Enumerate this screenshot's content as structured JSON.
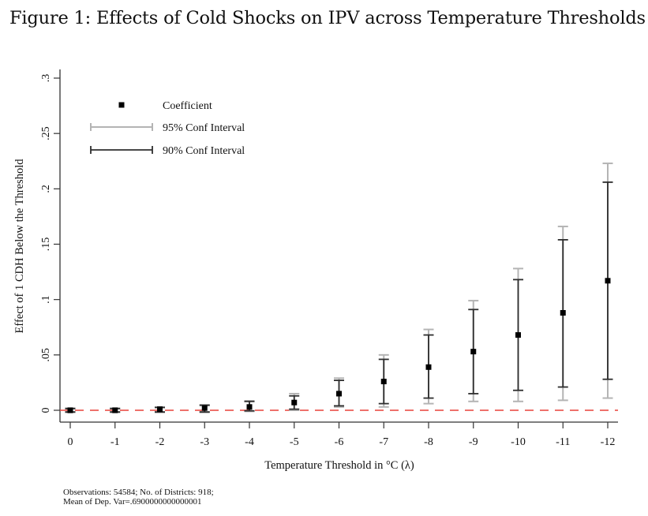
{
  "figure": {
    "title": "Figure 1: Effects of Cold Shocks on IPV across Temperature Thresholds",
    "notes": [
      "Observations: 54584; No. of Districts: 918;",
      "Mean of Dep. Var=.6900000000000001"
    ]
  },
  "chart_data": {
    "type": "scatter",
    "subtype": "coefficient plot with confidence intervals",
    "title": "",
    "xlabel": "Temperature Threshold in °C (λ)",
    "ylabel": "Effect of 1 CDH Below the Threshold",
    "categories": [
      "0",
      "-1",
      "-2",
      "-3",
      "-4",
      "-5",
      "-6",
      "-7",
      "-8",
      "-9",
      "-10",
      "-11",
      "-12"
    ],
    "ylim": [
      0,
      0.3
    ],
    "yticks": [
      0,
      0.05,
      0.1,
      0.15,
      0.2,
      0.25,
      0.3
    ],
    "ytick_labels": [
      "0",
      ".05",
      ".1",
      ".15",
      ".2",
      ".25",
      ".3"
    ],
    "grid": false,
    "reference_line": {
      "y": 0,
      "style": "dashed",
      "color": "#e8423a"
    },
    "legend": {
      "position": "top-left",
      "entries": [
        {
          "label": "Coefficient",
          "kind": "marker"
        },
        {
          "label": "95% Conf Interval",
          "kind": "ci95"
        },
        {
          "label": "90% Conf Interval",
          "kind": "ci90"
        }
      ]
    },
    "colors": {
      "coefficient": "#000000",
      "ci95": "#b4b4b4",
      "ci90": "#2e2e2e",
      "axis": "#333333"
    },
    "series": [
      {
        "name": "Coefficient",
        "values": [
          0.0,
          0.0,
          0.001,
          0.002,
          0.003,
          0.007,
          0.015,
          0.026,
          0.039,
          0.053,
          0.068,
          0.088,
          0.117
        ]
      },
      {
        "name": "95% CI low",
        "values": [
          -0.002,
          -0.002,
          -0.002,
          -0.002,
          -0.001,
          0.0,
          0.003,
          0.003,
          0.006,
          0.008,
          0.008,
          0.009,
          0.011
        ]
      },
      {
        "name": "95% CI high",
        "values": [
          0.002,
          0.002,
          0.003,
          0.005,
          0.0085,
          0.015,
          0.029,
          0.05,
          0.073,
          0.099,
          0.128,
          0.166,
          0.223
        ]
      },
      {
        "name": "90% CI low",
        "values": [
          -0.0015,
          -0.0015,
          -0.0015,
          -0.0015,
          -0.0005,
          0.001,
          0.004,
          0.006,
          0.011,
          0.015,
          0.018,
          0.021,
          0.028
        ]
      },
      {
        "name": "90% CI high",
        "values": [
          0.0015,
          0.0015,
          0.0025,
          0.0045,
          0.008,
          0.013,
          0.027,
          0.046,
          0.068,
          0.091,
          0.118,
          0.154,
          0.206
        ]
      }
    ]
  }
}
